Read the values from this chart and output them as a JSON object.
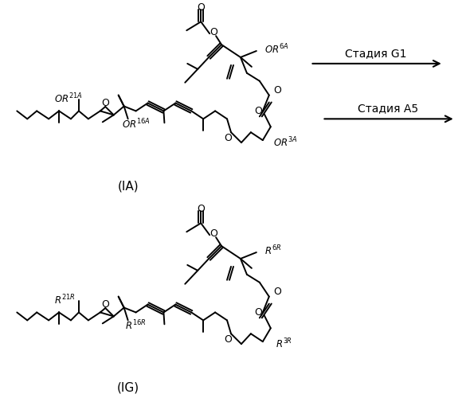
{
  "background": "#ffffff",
  "label_IA": "(IA)",
  "label_IG": "(IG)",
  "stage1_text": "Стадия G1",
  "stage2_text": "Стадия A5",
  "lc": "#000000",
  "lw": 1.4
}
